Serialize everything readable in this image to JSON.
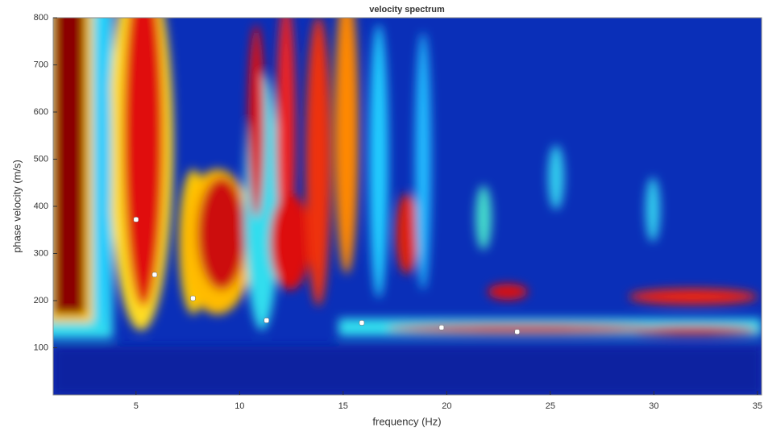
{
  "chart_data": {
    "type": "scatter",
    "title": "velocity spectrum",
    "x_label": "frequency (Hz)",
    "y_label": "phase velocity (m/s)",
    "x": [
      5,
      5.9,
      7.75,
      11.3,
      15.9,
      19.75,
      23.4
    ],
    "values": [
      372,
      255,
      205,
      158,
      153,
      143,
      134
    ],
    "color": "#ffffff",
    "xlim": [
      1,
      35.2
    ],
    "ylim": [
      0,
      800
    ],
    "xticks": [
      5,
      10,
      15,
      20,
      25,
      30,
      35
    ],
    "yticks": [
      100,
      200,
      300,
      400,
      500,
      600,
      700,
      800
    ]
  }
}
